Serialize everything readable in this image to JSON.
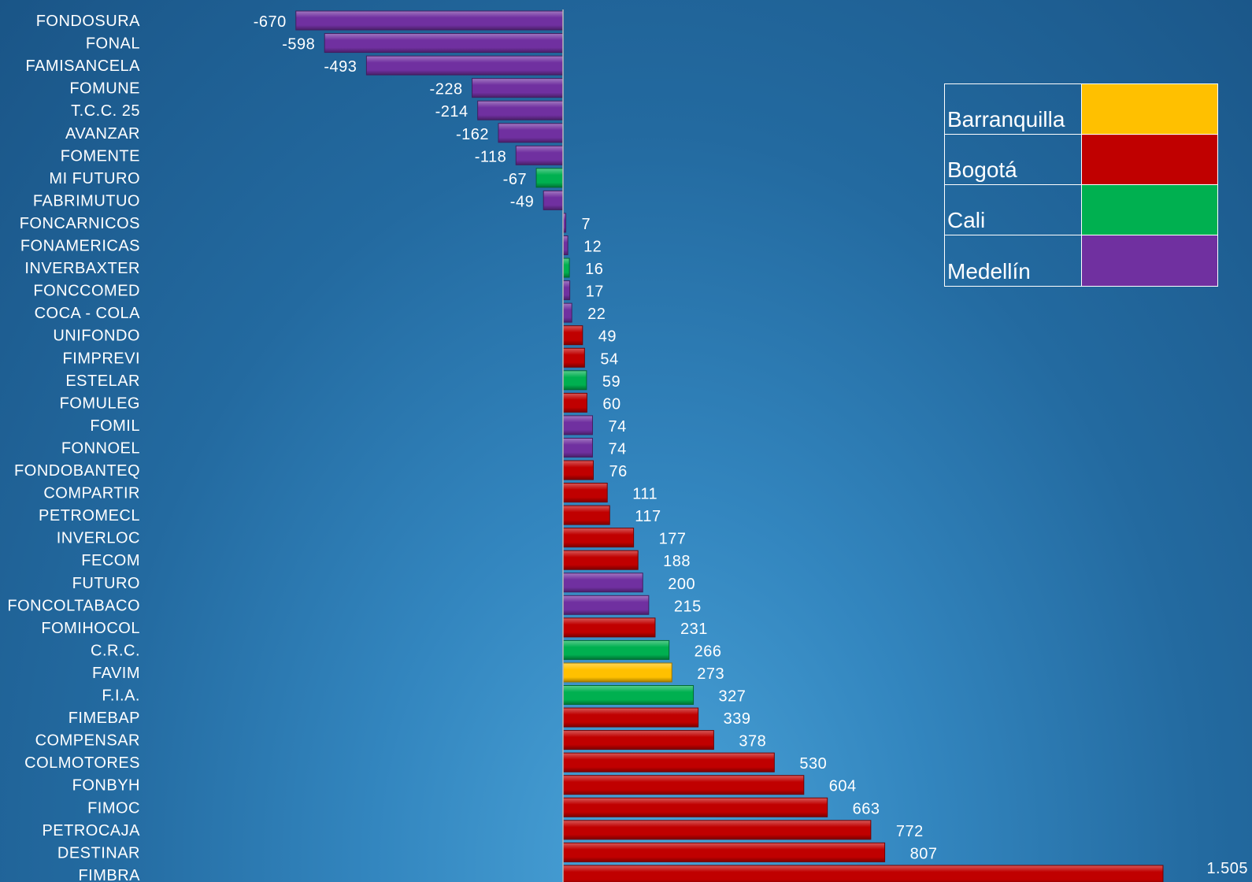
{
  "chart_data": {
    "type": "bar",
    "orientation": "horizontal",
    "categories": [
      "FONDOSURA",
      "FONAL",
      "FAMISANCELA",
      "FOMUNE",
      "T.C.C. 25",
      "AVANZAR",
      "FOMENTE",
      "MI FUTURO",
      "FABRIMUTUO",
      "FONCARNICOS",
      "FONAMERICAS",
      "INVERBAXTER",
      "FONCCOMED",
      "COCA - COLA",
      "UNIFONDO",
      "FIMPREVI",
      "ESTELAR",
      "FOMULEG",
      "FOMIL",
      "FONNOEL",
      "FONDOBANTEQ",
      "COMPARTIR",
      "PETROMECL",
      "INVERLOC",
      "FECOM",
      "FUTURO",
      "FONCOLTABACO",
      "FOMIHOCOL",
      "C.R.C.",
      "FAVIM",
      "F.I.A.",
      "FIMEBAP",
      "COMPENSAR",
      "COLMOTORES",
      "FONBYH",
      "FIMOC",
      "PETROCAJA",
      "DESTINAR",
      "FIMBRA"
    ],
    "values": [
      -670,
      -598,
      -493,
      -228,
      -214,
      -162,
      -118,
      -67,
      -49,
      7,
      12,
      16,
      17,
      22,
      49,
      54,
      59,
      60,
      74,
      74,
      76,
      111,
      117,
      177,
      188,
      200,
      215,
      231,
      266,
      273,
      327,
      339,
      378,
      530,
      604,
      663,
      772,
      807,
      1505
    ],
    "value_labels": [
      "-670",
      "-598",
      "-493",
      "-228",
      "-214",
      "-162",
      "-118",
      "-67",
      "-49",
      "7",
      "12",
      "16",
      "17",
      "22",
      "49",
      "54",
      "59",
      "60",
      "74",
      "74",
      "76",
      "111",
      "117",
      "177",
      "188",
      "200",
      "215",
      "231",
      "266",
      "273",
      "327",
      "339",
      "378",
      "530",
      "604",
      "663",
      "772",
      "807",
      "1.505"
    ],
    "city": [
      "Medellín",
      "Medellín",
      "Medellín",
      "Medellín",
      "Medellín",
      "Medellín",
      "Medellín",
      "Cali",
      "Medellín",
      "Medellín",
      "Medellín",
      "Cali",
      "Medellín",
      "Medellín",
      "Bogotá",
      "Bogotá",
      "Cali",
      "Bogotá",
      "Medellín",
      "Medellín",
      "Bogotá",
      "Bogotá",
      "Bogotá",
      "Bogotá",
      "Bogotá",
      "Medellín",
      "Medellín",
      "Bogotá",
      "Cali",
      "Barranquilla",
      "Cali",
      "Bogotá",
      "Bogotá",
      "Bogotá",
      "Bogotá",
      "Bogotá",
      "Bogotá",
      "Bogotá",
      "Bogotá"
    ],
    "legend": [
      {
        "name": "Barranquilla",
        "color": "#ffc000"
      },
      {
        "name": "Bogotá",
        "color": "#c00000"
      },
      {
        "name": "Cali",
        "color": "#00b050"
      },
      {
        "name": "Medellín",
        "color": "#7030a0"
      }
    ],
    "legend_position": "top-right",
    "xlim": [
      -670,
      1505
    ],
    "title": "",
    "xlabel": "",
    "ylabel": "",
    "grid": false
  }
}
